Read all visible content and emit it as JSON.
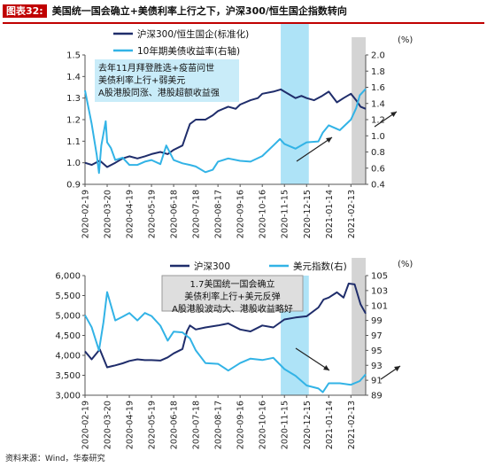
{
  "header": {
    "figure_no": "图表32:",
    "title": "美国统一国会确立+美债利率上行之下，沪深300/恒生国企指数转向"
  },
  "source": "资料来源：Wind，华泰研究",
  "colors": {
    "navy": "#1f2d6b",
    "cyan": "#32b3e6",
    "highlight": "#aee3f7",
    "grey_band": "#d4d4d4",
    "red": "#c00000"
  },
  "chart_data": [
    {
      "type": "line",
      "title": "",
      "x_ticks": [
        "2020-02-19",
        "2020-03-20",
        "2020-04-19",
        "2020-05-19",
        "2020-06-18",
        "2020-07-18",
        "2020-08-17",
        "2020-09-16",
        "2020-10-16",
        "2020-11-15",
        "2020-12-15",
        "2021-01-14",
        "2021-02-13"
      ],
      "x_range": [
        "2020-02-19",
        "2021-03-05"
      ],
      "left_axis": {
        "ylim": [
          0.9,
          1.5
        ],
        "ticks": [
          "0.9",
          "1.0",
          "1.1",
          "1.2",
          "1.3",
          "1.4",
          "1.5"
        ]
      },
      "right_axis": {
        "unit": "(%)",
        "ylim": [
          0.4,
          2.0
        ],
        "ticks": [
          "0.4",
          "0.6",
          "0.8",
          "1.0",
          "1.2",
          "1.4",
          "1.6",
          "1.8",
          "2.0"
        ]
      },
      "highlight_range": [
        "2020-11-10",
        "2020-12-18"
      ],
      "grey_range": [
        "2021-02-14",
        "2021-03-05"
      ],
      "annotation": [
        "去年11月拜登胜选+疫苗问世",
        "美债利率上行+弱美元",
        "A股港股同涨、港股超额收益强"
      ],
      "series": [
        {
          "name": "沪深300/恒生国企(标准化)",
          "axis": "left",
          "color": "#1f2d6b",
          "x": [
            "2020-02-19",
            "2020-02-28",
            "2020-03-10",
            "2020-03-20",
            "2020-03-31",
            "2020-04-10",
            "2020-04-19",
            "2020-04-30",
            "2020-05-10",
            "2020-05-19",
            "2020-05-31",
            "2020-06-10",
            "2020-06-18",
            "2020-06-30",
            "2020-07-06",
            "2020-07-10",
            "2020-07-18",
            "2020-07-31",
            "2020-08-10",
            "2020-08-17",
            "2020-08-31",
            "2020-09-10",
            "2020-09-16",
            "2020-09-30",
            "2020-10-10",
            "2020-10-16",
            "2020-10-31",
            "2020-11-10",
            "2020-11-15",
            "2020-11-30",
            "2020-12-08",
            "2020-12-15",
            "2020-12-25",
            "2021-01-05",
            "2021-01-14",
            "2021-01-25",
            "2021-02-03",
            "2021-02-13",
            "2021-02-20",
            "2021-02-26",
            "2021-03-05"
          ],
          "values": [
            1.0,
            0.99,
            1.01,
            0.98,
            1.0,
            1.02,
            1.03,
            1.02,
            1.03,
            1.04,
            1.05,
            1.04,
            1.06,
            1.08,
            1.14,
            1.18,
            1.2,
            1.2,
            1.22,
            1.24,
            1.26,
            1.25,
            1.27,
            1.29,
            1.3,
            1.32,
            1.33,
            1.34,
            1.33,
            1.3,
            1.31,
            1.3,
            1.29,
            1.31,
            1.33,
            1.28,
            1.3,
            1.32,
            1.29,
            1.26,
            1.25
          ]
        },
        {
          "name": "10年期美债收益率(右轴)",
          "axis": "right",
          "color": "#32b3e6",
          "x": [
            "2020-02-19",
            "2020-02-28",
            "2020-03-06",
            "2020-03-09",
            "2020-03-12",
            "2020-03-18",
            "2020-03-20",
            "2020-03-25",
            "2020-03-31",
            "2020-04-10",
            "2020-04-19",
            "2020-04-30",
            "2020-05-10",
            "2020-05-19",
            "2020-05-31",
            "2020-06-08",
            "2020-06-18",
            "2020-06-30",
            "2020-07-10",
            "2020-07-18",
            "2020-07-31",
            "2020-08-10",
            "2020-08-17",
            "2020-08-31",
            "2020-09-16",
            "2020-09-30",
            "2020-10-16",
            "2020-10-31",
            "2020-11-09",
            "2020-11-15",
            "2020-11-30",
            "2020-12-15",
            "2020-12-31",
            "2021-01-06",
            "2021-01-14",
            "2021-01-29",
            "2021-02-13",
            "2021-02-20",
            "2021-02-25",
            "2021-03-05"
          ],
          "values": [
            1.56,
            1.15,
            0.76,
            0.54,
            0.88,
            1.18,
            0.92,
            0.85,
            0.7,
            0.73,
            0.64,
            0.64,
            0.68,
            0.7,
            0.65,
            0.88,
            0.7,
            0.66,
            0.64,
            0.62,
            0.55,
            0.58,
            0.68,
            0.72,
            0.69,
            0.68,
            0.75,
            0.88,
            0.96,
            0.9,
            0.84,
            0.92,
            0.93,
            1.04,
            1.13,
            1.07,
            1.2,
            1.34,
            1.5,
            1.58
          ]
        }
      ]
    },
    {
      "type": "line",
      "title": "",
      "x_ticks": [
        "2020-02-19",
        "2020-03-20",
        "2020-04-19",
        "2020-05-19",
        "2020-06-18",
        "2020-07-18",
        "2020-08-17",
        "2020-09-16",
        "2020-10-16",
        "2020-11-15",
        "2020-12-15",
        "2021-01-14",
        "2021-02-13"
      ],
      "x_range": [
        "2020-02-19",
        "2021-03-05"
      ],
      "left_axis": {
        "ylim": [
          3000,
          6000
        ],
        "ticks": [
          "3,000",
          "3,500",
          "4,000",
          "4,500",
          "5,000",
          "5,500",
          "6,000"
        ]
      },
      "right_axis": {
        "unit": "(%)",
        "ylim": [
          89,
          105
        ],
        "ticks": [
          "89",
          "91",
          "93",
          "95",
          "97",
          "99",
          "101",
          "103",
          "105"
        ]
      },
      "highlight_range": [
        "2020-11-10",
        "2020-12-18"
      ],
      "grey_range": [
        "2021-02-14",
        "2021-03-05"
      ],
      "annotation": [
        "1.7美国统一国会确立",
        "美债利率上行+美元反弹",
        "A股港股波动大、港股收益略好"
      ],
      "series": [
        {
          "name": "沪深300",
          "axis": "left",
          "color": "#1f2d6b",
          "x": [
            "2020-02-19",
            "2020-02-28",
            "2020-03-10",
            "2020-03-20",
            "2020-03-31",
            "2020-04-10",
            "2020-04-19",
            "2020-04-30",
            "2020-05-10",
            "2020-05-19",
            "2020-05-31",
            "2020-06-10",
            "2020-06-18",
            "2020-06-30",
            "2020-07-06",
            "2020-07-10",
            "2020-07-18",
            "2020-07-31",
            "2020-08-17",
            "2020-08-31",
            "2020-09-16",
            "2020-09-30",
            "2020-10-16",
            "2020-10-31",
            "2020-11-15",
            "2020-11-30",
            "2020-12-15",
            "2020-12-31",
            "2021-01-07",
            "2021-01-14",
            "2021-01-25",
            "2021-02-03",
            "2021-02-10",
            "2021-02-18",
            "2021-02-26",
            "2021-03-05"
          ],
          "values": [
            4100,
            3900,
            4150,
            3700,
            3750,
            3800,
            3860,
            3900,
            3880,
            3880,
            3870,
            3950,
            4050,
            4160,
            4600,
            4750,
            4650,
            4700,
            4750,
            4800,
            4650,
            4600,
            4750,
            4700,
            4900,
            4950,
            4980,
            5200,
            5400,
            5450,
            5580,
            5450,
            5800,
            5780,
            5280,
            5050
          ]
        },
        {
          "name": "美元指数(右)",
          "axis": "right",
          "color": "#32b3e6",
          "x": [
            "2020-02-19",
            "2020-02-28",
            "2020-03-09",
            "2020-03-15",
            "2020-03-20",
            "2020-03-31",
            "2020-04-10",
            "2020-04-19",
            "2020-04-30",
            "2020-05-10",
            "2020-05-19",
            "2020-05-31",
            "2020-06-10",
            "2020-06-18",
            "2020-06-30",
            "2020-07-10",
            "2020-07-18",
            "2020-07-31",
            "2020-08-17",
            "2020-08-31",
            "2020-09-16",
            "2020-09-30",
            "2020-10-16",
            "2020-10-31",
            "2020-11-15",
            "2020-11-30",
            "2020-12-15",
            "2020-12-31",
            "2021-01-06",
            "2021-01-14",
            "2021-01-29",
            "2021-02-13",
            "2021-02-25",
            "2021-03-05"
          ],
          "values": [
            99.7,
            98.1,
            95.0,
            98.8,
            102.8,
            99.0,
            99.5,
            100.0,
            99.0,
            100.0,
            99.6,
            98.3,
            96.3,
            97.5,
            97.4,
            96.6,
            95.0,
            93.3,
            93.2,
            92.3,
            93.3,
            93.9,
            93.7,
            94.0,
            92.5,
            91.6,
            90.3,
            89.9,
            89.4,
            90.6,
            90.6,
            90.4,
            90.9,
            91.8
          ]
        }
      ]
    }
  ]
}
